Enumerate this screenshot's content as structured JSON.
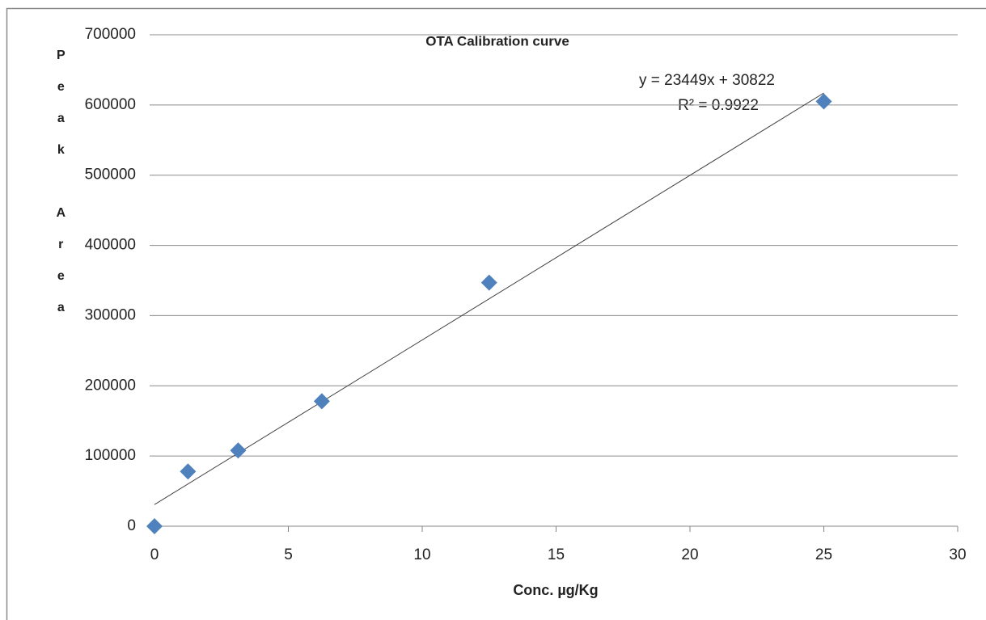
{
  "chart_data": {
    "type": "scatter",
    "title": "OTA Calibration curve",
    "x_label": "Conc. µg/Kg",
    "y_label": "Peak Area",
    "x": [
      0,
      1.25,
      3.125,
      6.25,
      12.5,
      25
    ],
    "values": [
      0,
      78000,
      108000,
      178000,
      347000,
      605000
    ],
    "color": "#4f81bd",
    "trendline": {
      "slope": 23449,
      "intercept": 30822,
      "equation": "y = 23449x + 30822",
      "r2_label": "R² = 0.9922"
    },
    "xlim": [
      0,
      30
    ],
    "xticks": [
      0,
      5,
      10,
      15,
      20,
      25,
      30
    ],
    "ylim": [
      0,
      700000
    ],
    "yticks": [
      0,
      100000,
      200000,
      300000,
      400000,
      500000,
      600000,
      700000
    ],
    "grid": true
  }
}
